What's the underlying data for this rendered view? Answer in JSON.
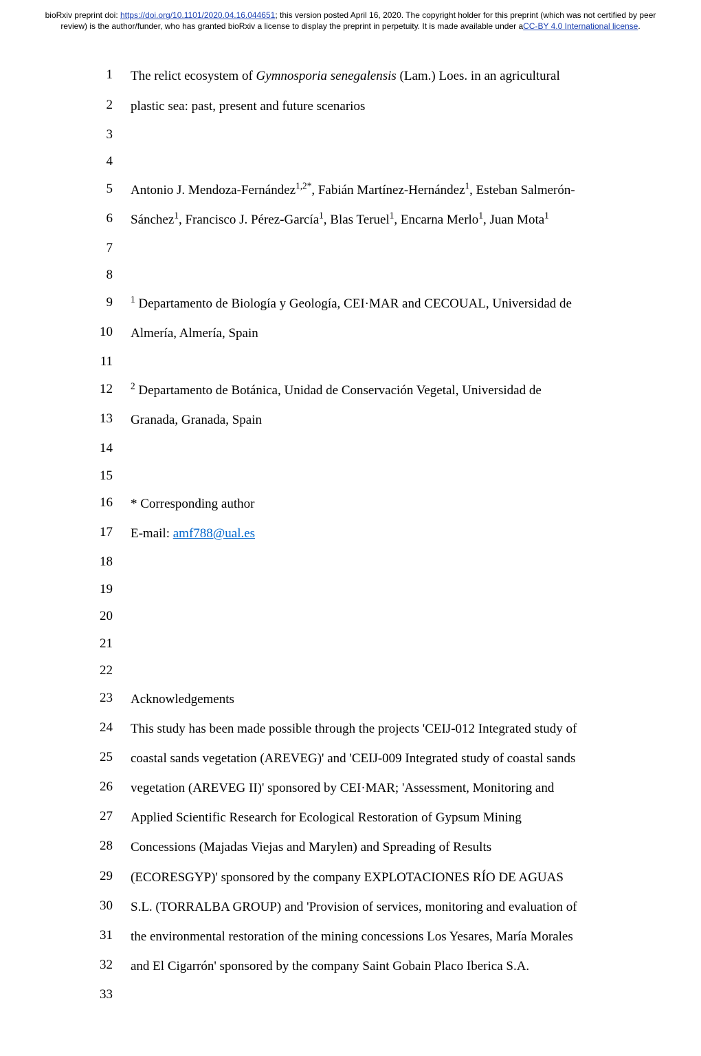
{
  "header": {
    "line1_pre": "bioRxiv preprint doi: ",
    "doi_url": "https://doi.org/10.1101/2020.04.16.044651",
    "line1_post": "; this version posted April 16, 2020. The copyright holder for this preprint (which was not certified by peer review) is the author/funder, who has granted bioRxiv a license to display the preprint in perpetuity. It is made available under a",
    "cc_text": "CC-BY 4.0 International license",
    "period": "."
  },
  "lines": [
    {
      "n": "1",
      "html": "The relict ecosystem of <span class='it'>Gymnosporia senegalensis</span> (Lam.) Loes. in an agricultural"
    },
    {
      "n": "2",
      "html": "plastic sea: past, present and future scenarios"
    },
    {
      "n": "3",
      "html": ""
    },
    {
      "n": "4",
      "html": ""
    },
    {
      "n": "5",
      "html": "Antonio J. Mendoza-Fernández<sup>1,2*</sup>, Fabián Martínez-Hernández<sup>1</sup>, Esteban Salmerón-"
    },
    {
      "n": "6",
      "html": "Sánchez<sup>1</sup>, Francisco J. Pérez-García<sup>1</sup>, Blas Teruel<sup>1</sup>, Encarna Merlo<sup>1</sup>, Juan Mota<sup>1</sup>"
    },
    {
      "n": "7",
      "html": ""
    },
    {
      "n": "8",
      "html": ""
    },
    {
      "n": "9",
      "html": "<sup>1</sup> Departamento de Biología y Geología, CEI·MAR and CECOUAL, Universidad de"
    },
    {
      "n": "10",
      "html": "Almería, Almería, Spain"
    },
    {
      "n": "11",
      "html": ""
    },
    {
      "n": "12",
      "html": "<sup>2</sup> Departamento de Botánica, Unidad de Conservación Vegetal, Universidad de"
    },
    {
      "n": "13",
      "html": "Granada, Granada, Spain"
    },
    {
      "n": "14",
      "html": ""
    },
    {
      "n": "15",
      "html": ""
    },
    {
      "n": "16",
      "html": "* Corresponding author"
    },
    {
      "n": "17",
      "html": "E-mail: <a class='mail' data-name='corresponding-email-link' data-interactable='true'>amf788@ual.es</a>"
    },
    {
      "n": "18",
      "html": ""
    },
    {
      "n": "19",
      "html": ""
    },
    {
      "n": "20",
      "html": ""
    },
    {
      "n": "21",
      "html": ""
    },
    {
      "n": "22",
      "html": ""
    },
    {
      "n": "23",
      "html": "Acknowledgements"
    },
    {
      "n": "24",
      "html": "This study has been made possible through the projects 'CEIJ-012 Integrated study of"
    },
    {
      "n": "25",
      "html": "coastal sands vegetation (AREVEG)' and 'CEIJ-009 Integrated study of coastal sands"
    },
    {
      "n": "26",
      "html": "vegetation (AREVEG II)' sponsored by CEI·MAR; 'Assessment, Monitoring and"
    },
    {
      "n": "27",
      "html": "Applied Scientific Research for Ecological Restoration of Gypsum Mining"
    },
    {
      "n": "28",
      "html": "Concessions (Majadas Viejas and Marylen) and Spreading of Results"
    },
    {
      "n": "29",
      "html": "(ECORESGYP)' sponsored by the company EXPLOTACIONES RÍO DE AGUAS"
    },
    {
      "n": "30",
      "html": "S.L. (TORRALBA GROUP) and 'Provision of services, monitoring and evaluation of"
    },
    {
      "n": "31",
      "html": "the environmental restoration of the mining concessions Los Yesares, María Morales"
    },
    {
      "n": "32",
      "html": "and El Cigarrón' sponsored by the company Saint Gobain Placo Iberica S.A."
    },
    {
      "n": "33",
      "html": ""
    }
  ]
}
